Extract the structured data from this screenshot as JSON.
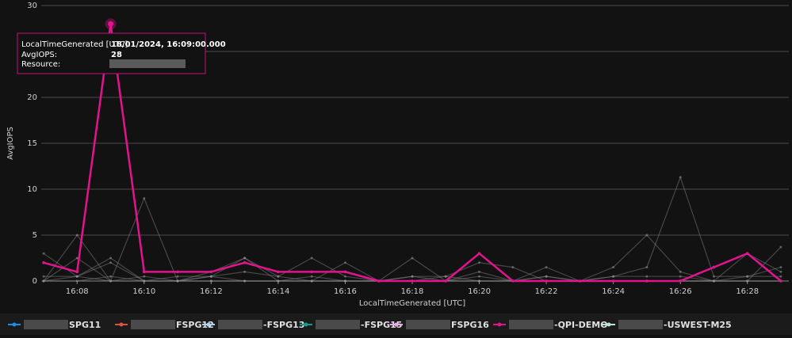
{
  "chart_data": {
    "type": "line",
    "y_label": "AvgIOPS",
    "x_label": "LocalTimeGenerated [UTC]",
    "categories": [
      null,
      "16:08",
      null,
      "16:10",
      null,
      "16:12",
      null,
      "16:14",
      null,
      "16:16",
      null,
      "16:18",
      null,
      "16:20",
      null,
      "16:22",
      null,
      "16:24",
      null,
      "16:26",
      null,
      "16:28",
      null
    ],
    "ylim": [
      0,
      30
    ],
    "yticks": [
      0,
      5,
      10,
      15,
      20,
      25,
      30
    ],
    "grid": true,
    "highlight": 5,
    "series": [
      {
        "name": "SPG11",
        "color": "#1f8fe0",
        "values": [
          0,
          2.5,
          0,
          0.5,
          0,
          0.5,
          2.5,
          0.5,
          2.5,
          0.5,
          0,
          0.5,
          0.5,
          2,
          1.5,
          0,
          0,
          0.5,
          1.5,
          11.3,
          0.5,
          0.5,
          1.5
        ]
      },
      {
        "name": "FSPG12",
        "color": "#e0533a",
        "values": [
          3,
          0.5,
          2,
          0,
          0.5,
          0.5,
          1,
          0.5,
          0,
          2,
          0,
          0.5,
          0,
          0.5,
          0,
          0.5,
          0,
          0,
          0,
          0,
          0,
          0,
          3.7
        ]
      },
      {
        "name": "-FSPG13",
        "color": "#a8d4f5",
        "values": [
          0.5,
          0.5,
          2.5,
          0,
          0,
          0.5,
          0,
          0,
          0,
          0,
          0,
          0,
          0.5,
          0,
          0,
          0.5,
          0,
          0.5,
          0.5,
          0.5,
          0,
          0.5,
          0.5
        ]
      },
      {
        "name": "-FSPG15",
        "color": "#12a08c",
        "values": [
          0,
          0.5,
          0,
          0,
          0,
          0,
          0,
          0,
          0,
          0,
          0,
          0,
          0,
          0,
          0,
          0,
          0,
          0,
          0,
          0,
          0,
          0,
          0
        ]
      },
      {
        "name": "FSPG16",
        "color": "#f0a5f0",
        "values": [
          0,
          0,
          0.5,
          0,
          0,
          0,
          0,
          0,
          0,
          0,
          0,
          0,
          0,
          0,
          0,
          0,
          0,
          0,
          0,
          0,
          0,
          0,
          0
        ]
      },
      {
        "name": "-QPI-DEMO",
        "color": "#e3138f",
        "values": [
          2,
          1,
          28,
          1,
          1,
          1,
          2,
          1,
          1,
          1,
          0,
          0,
          0,
          3,
          0,
          0,
          0,
          0,
          0,
          0,
          1.5,
          3,
          0
        ]
      },
      {
        "name": "-USWEST-M25",
        "color": "#b8e6d2",
        "values": [
          0,
          5,
          0,
          9,
          0,
          1,
          2.5,
          0,
          0.5,
          0,
          0,
          2.5,
          0,
          1,
          0,
          1.5,
          0,
          1.5,
          5,
          1,
          0,
          3,
          1
        ]
      }
    ],
    "tooltip": {
      "time_label": "LocalTimeGenerated [UTC]:",
      "time": "18/01/2024, 16:09:00.000",
      "value_label": "AvgIOPS:",
      "value": "28",
      "resource_label": "Resource:"
    }
  }
}
